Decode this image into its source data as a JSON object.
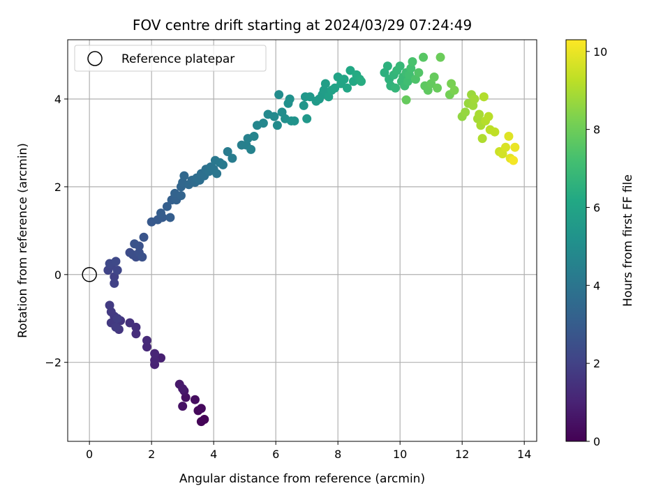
{
  "chart_data": {
    "type": "scatter",
    "title": "FOV centre drift starting at 2024/03/29 07:24:49",
    "xlabel": "Angular distance from reference (arcmin)",
    "ylabel": "Rotation from reference (arcmin)",
    "xlim": [
      -0.7,
      14.4
    ],
    "ylim": [
      -3.8,
      5.35
    ],
    "xticks": [
      "0",
      "2",
      "4",
      "6",
      "8",
      "10",
      "12",
      "14"
    ],
    "xtick_values": [
      0,
      2,
      4,
      6,
      8,
      10,
      12,
      14
    ],
    "yticks": [
      "−2",
      "0",
      "2",
      "4"
    ],
    "ytick_values": [
      -2,
      0,
      2,
      4
    ],
    "grid": true,
    "legend": {
      "label": "Reference platepar",
      "placement": "top-left"
    },
    "reference_point": {
      "x": 0,
      "y": 0
    },
    "colorbar": {
      "label": "Hours from first FF file",
      "colormap": "viridis",
      "range": [
        0,
        10.3
      ],
      "ticks": [
        "0",
        "2",
        "4",
        "6",
        "8",
        "10"
      ],
      "tick_values": [
        0,
        2,
        4,
        6,
        8,
        10
      ]
    },
    "series": [
      {
        "points": [
          [
            3.7,
            -3.3,
            0.05
          ],
          [
            3.6,
            -3.35,
            0.1
          ],
          [
            3.5,
            -3.1,
            0.2
          ],
          [
            3.6,
            -3.05,
            0.25
          ],
          [
            3.4,
            -2.85,
            0.35
          ],
          [
            3.1,
            -2.8,
            0.45
          ],
          [
            3.0,
            -3.0,
            0.5
          ],
          [
            3.05,
            -2.65,
            0.6
          ],
          [
            2.9,
            -2.5,
            0.7
          ],
          [
            3.0,
            -2.6,
            0.75
          ],
          [
            2.3,
            -1.9,
            0.9
          ],
          [
            2.1,
            -2.05,
            1.0
          ],
          [
            2.1,
            -1.95,
            1.05
          ],
          [
            2.1,
            -1.8,
            1.1
          ],
          [
            1.85,
            -1.65,
            1.2
          ],
          [
            1.85,
            -1.5,
            1.25
          ],
          [
            1.5,
            -1.35,
            1.35
          ],
          [
            1.5,
            -1.2,
            1.4
          ],
          [
            1.3,
            -1.1,
            1.45
          ],
          [
            1.0,
            -1.05,
            1.55
          ],
          [
            0.95,
            -1.25,
            1.6
          ],
          [
            0.85,
            -1.1,
            1.65
          ],
          [
            0.8,
            -0.95,
            1.7
          ],
          [
            0.7,
            -1.1,
            1.72
          ],
          [
            0.7,
            -0.85,
            1.75
          ],
          [
            0.65,
            -0.7,
            1.78
          ],
          [
            0.85,
            -1.2,
            1.8
          ],
          [
            0.9,
            -1.0,
            1.85
          ],
          [
            0.8,
            -0.05,
            1.95
          ],
          [
            0.8,
            -0.2,
            2.0
          ],
          [
            0.6,
            0.1,
            2.05
          ],
          [
            0.7,
            0.2,
            2.1
          ],
          [
            0.9,
            0.1,
            2.15
          ],
          [
            0.65,
            0.25,
            2.2
          ],
          [
            0.85,
            0.3,
            2.25
          ],
          [
            1.3,
            0.5,
            2.35
          ],
          [
            1.5,
            0.4,
            2.4
          ],
          [
            1.4,
            0.45,
            2.45
          ],
          [
            1.6,
            0.5,
            2.5
          ],
          [
            1.7,
            0.4,
            2.55
          ],
          [
            1.6,
            0.65,
            2.6
          ],
          [
            1.45,
            0.7,
            2.65
          ],
          [
            1.75,
            0.85,
            2.7
          ],
          [
            2.0,
            1.2,
            2.85
          ],
          [
            2.2,
            1.25,
            2.9
          ],
          [
            2.35,
            1.3,
            2.95
          ],
          [
            2.3,
            1.4,
            3.0
          ],
          [
            2.6,
            1.3,
            3.05
          ],
          [
            2.5,
            1.55,
            3.1
          ],
          [
            2.65,
            1.7,
            3.15
          ],
          [
            2.8,
            1.7,
            3.2
          ],
          [
            2.75,
            1.85,
            3.25
          ],
          [
            2.95,
            1.8,
            3.3
          ],
          [
            2.95,
            2.0,
            3.35
          ],
          [
            3.0,
            2.1,
            3.4
          ],
          [
            3.05,
            2.25,
            3.45
          ],
          [
            3.2,
            2.05,
            3.5
          ],
          [
            3.3,
            2.15,
            3.55
          ],
          [
            3.4,
            2.1,
            3.6
          ],
          [
            3.45,
            2.2,
            3.65
          ],
          [
            3.55,
            2.15,
            3.7
          ],
          [
            3.6,
            2.3,
            3.75
          ],
          [
            3.7,
            2.25,
            3.8
          ],
          [
            3.75,
            2.4,
            3.85
          ],
          [
            3.85,
            2.35,
            3.9
          ],
          [
            3.9,
            2.45,
            3.95
          ],
          [
            4.0,
            2.4,
            4.0
          ],
          [
            4.1,
            2.3,
            4.05
          ],
          [
            4.05,
            2.6,
            4.1
          ],
          [
            4.2,
            2.55,
            4.15
          ],
          [
            4.3,
            2.5,
            4.2
          ],
          [
            4.45,
            2.8,
            4.25
          ],
          [
            4.6,
            2.65,
            4.3
          ],
          [
            4.9,
            2.95,
            4.4
          ],
          [
            5.05,
            2.95,
            4.45
          ],
          [
            5.1,
            3.1,
            4.5
          ],
          [
            5.2,
            2.85,
            4.55
          ],
          [
            5.3,
            3.15,
            4.6
          ],
          [
            5.4,
            3.4,
            4.7
          ],
          [
            5.6,
            3.45,
            4.75
          ],
          [
            5.75,
            3.65,
            4.8
          ],
          [
            5.95,
            3.6,
            4.85
          ],
          [
            6.05,
            3.4,
            4.9
          ],
          [
            6.1,
            4.1,
            4.95
          ],
          [
            6.2,
            3.7,
            5.0
          ],
          [
            6.3,
            3.55,
            5.05
          ],
          [
            6.4,
            3.9,
            5.1
          ],
          [
            6.45,
            4.0,
            5.15
          ],
          [
            6.5,
            3.5,
            5.2
          ],
          [
            6.6,
            3.5,
            5.25
          ],
          [
            6.9,
            3.85,
            5.35
          ],
          [
            6.95,
            4.05,
            5.4
          ],
          [
            7.0,
            3.55,
            5.45
          ],
          [
            7.1,
            4.05,
            5.5
          ],
          [
            7.3,
            3.95,
            5.55
          ],
          [
            7.4,
            4.0,
            5.6
          ],
          [
            7.5,
            4.1,
            5.65
          ],
          [
            7.55,
            4.2,
            5.7
          ],
          [
            7.6,
            4.35,
            5.75
          ],
          [
            7.7,
            4.05,
            5.8
          ],
          [
            7.8,
            4.2,
            5.85
          ],
          [
            7.9,
            4.25,
            5.9
          ],
          [
            8.0,
            4.5,
            5.95
          ],
          [
            8.1,
            4.35,
            6.0
          ],
          [
            8.2,
            4.45,
            6.05
          ],
          [
            8.3,
            4.25,
            6.1
          ],
          [
            8.4,
            4.65,
            6.15
          ],
          [
            8.5,
            4.4,
            6.2
          ],
          [
            8.6,
            4.55,
            6.25
          ],
          [
            8.7,
            4.45,
            6.3
          ],
          [
            8.75,
            4.4,
            6.35
          ],
          [
            9.5,
            4.6,
            6.5
          ],
          [
            9.6,
            4.75,
            6.55
          ],
          [
            9.65,
            4.45,
            6.6
          ],
          [
            9.7,
            4.3,
            6.65
          ],
          [
            9.8,
            4.55,
            6.7
          ],
          [
            9.85,
            4.25,
            6.75
          ],
          [
            9.9,
            4.65,
            6.8
          ],
          [
            10.0,
            4.75,
            6.85
          ],
          [
            10.05,
            4.4,
            6.9
          ],
          [
            10.1,
            4.5,
            6.95
          ],
          [
            10.15,
            4.3,
            7.0
          ],
          [
            10.2,
            4.6,
            7.05
          ],
          [
            10.25,
            4.4,
            7.1
          ],
          [
            10.3,
            4.55,
            7.15
          ],
          [
            10.35,
            4.7,
            7.2
          ],
          [
            10.4,
            4.85,
            7.3
          ],
          [
            10.5,
            4.45,
            7.4
          ],
          [
            10.6,
            4.6,
            7.5
          ],
          [
            10.75,
            4.95,
            7.6
          ],
          [
            10.8,
            4.3,
            7.7
          ],
          [
            10.9,
            4.2,
            7.75
          ],
          [
            11.0,
            4.35,
            7.8
          ],
          [
            11.1,
            4.5,
            7.85
          ],
          [
            11.2,
            4.25,
            7.9
          ],
          [
            11.3,
            4.95,
            7.95
          ],
          [
            10.2,
            3.98,
            7.85
          ],
          [
            11.6,
            4.1,
            8.1
          ],
          [
            11.65,
            4.35,
            8.2
          ],
          [
            11.75,
            4.2,
            8.25
          ],
          [
            12.0,
            3.6,
            8.6
          ],
          [
            12.1,
            3.7,
            8.65
          ],
          [
            12.2,
            3.9,
            8.7
          ],
          [
            12.3,
            4.1,
            8.75
          ],
          [
            12.35,
            3.85,
            8.8
          ],
          [
            12.4,
            4.0,
            8.85
          ],
          [
            12.5,
            3.55,
            8.9
          ],
          [
            12.55,
            3.65,
            8.95
          ],
          [
            12.6,
            3.4,
            9.0
          ],
          [
            12.65,
            3.1,
            9.05
          ],
          [
            12.7,
            4.05,
            9.1
          ],
          [
            12.75,
            3.5,
            9.15
          ],
          [
            12.85,
            3.6,
            9.2
          ],
          [
            12.9,
            3.3,
            9.25
          ],
          [
            13.05,
            3.25,
            9.3
          ],
          [
            13.2,
            2.8,
            9.5
          ],
          [
            13.3,
            2.75,
            9.6
          ],
          [
            13.4,
            2.9,
            9.7
          ],
          [
            13.5,
            3.15,
            9.8
          ],
          [
            13.55,
            2.65,
            9.9
          ],
          [
            13.7,
            2.9,
            10.0
          ],
          [
            13.65,
            2.6,
            10.15
          ]
        ]
      }
    ]
  }
}
